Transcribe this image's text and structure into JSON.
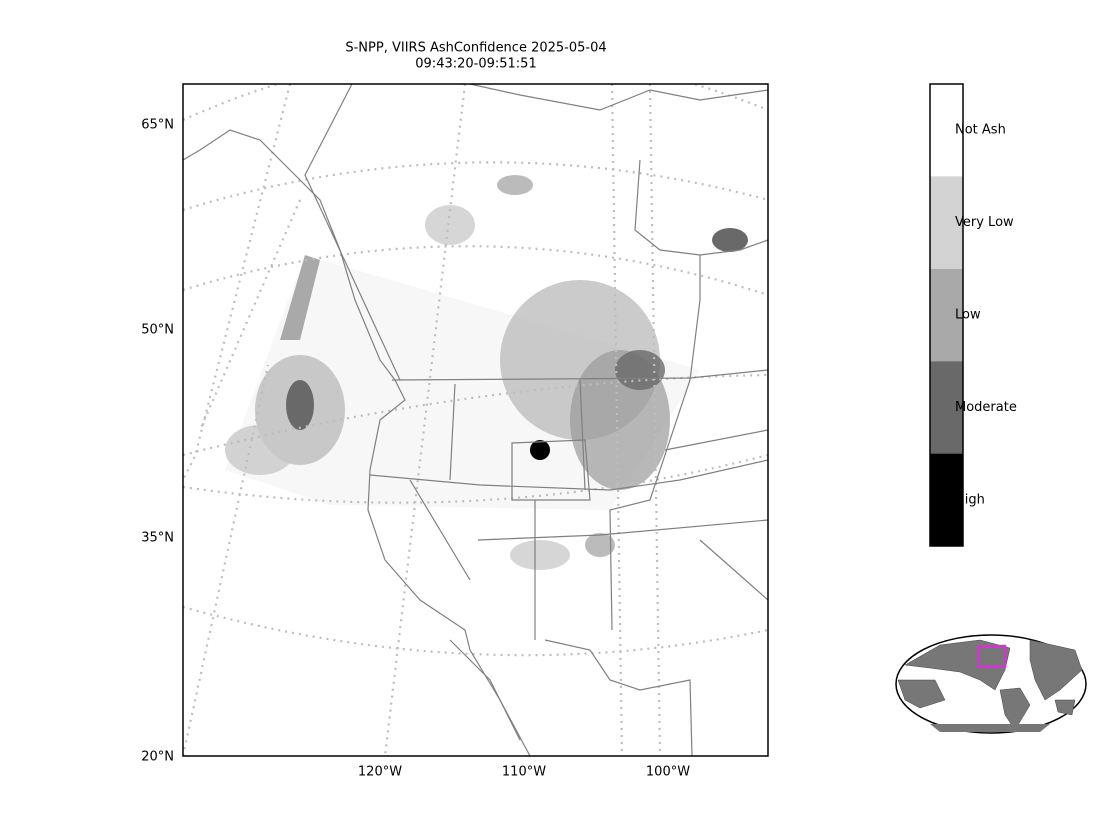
{
  "title": [
    "S-NPP, VIIRS AshConfidence 2025-05-04",
    "09:43:20-09:51:51"
  ],
  "lat_labels": [
    "65°N",
    "50°N",
    "35°N",
    "20°N"
  ],
  "lon_labels": [
    "120°W",
    "110°W",
    "100°W"
  ],
  "colorbar": [
    {
      "label": "Not Ash",
      "color": "#ffffff"
    },
    {
      "label": "Very Low",
      "color": "#d3d3d3"
    },
    {
      "label": "Low",
      "color": "#a9a9a9"
    },
    {
      "label": "Moderate",
      "color": "#696969"
    },
    {
      "label": "High",
      "color": "#000000"
    }
  ]
}
